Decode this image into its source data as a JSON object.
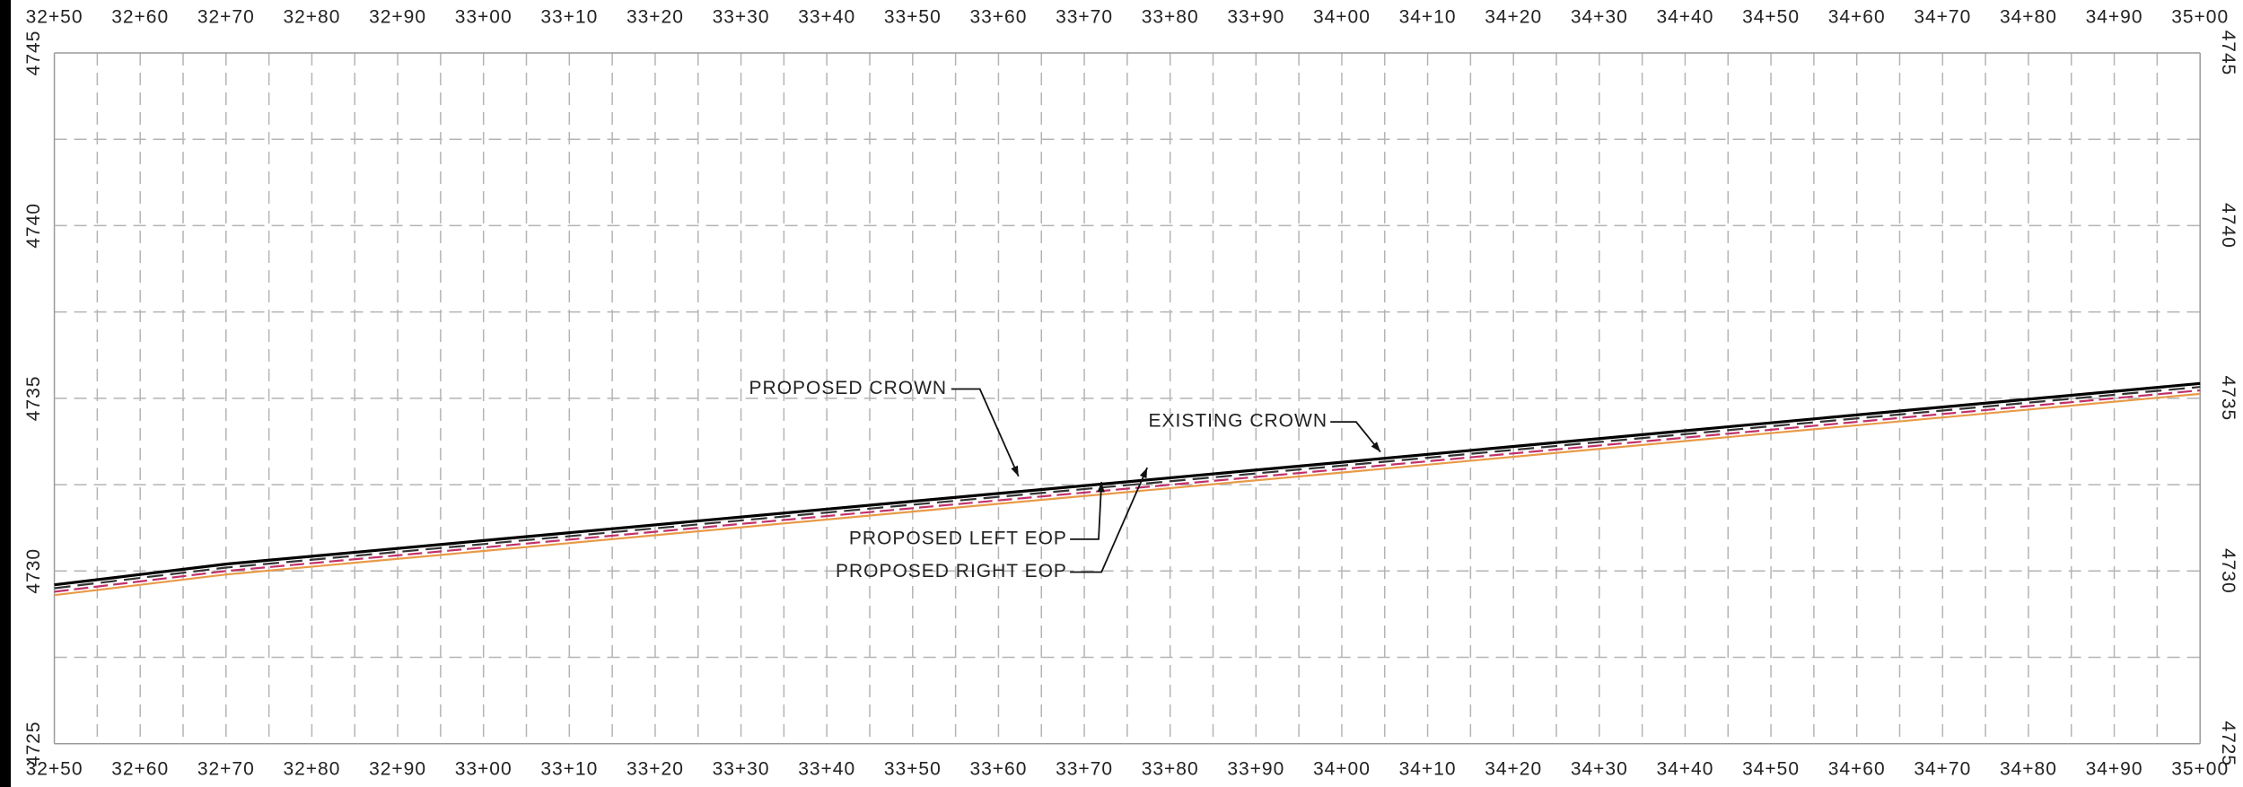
{
  "chart_data": {
    "type": "line",
    "x": [
      3250,
      3260,
      3270,
      3300,
      3350,
      3400,
      3450,
      3500
    ],
    "xlim": [
      3250,
      3500
    ],
    "xticks": [
      {
        "value": 3250,
        "label": "32+50"
      },
      {
        "value": 3260,
        "label": "32+60"
      },
      {
        "value": 3270,
        "label": "32+70"
      },
      {
        "value": 3280,
        "label": "32+80"
      },
      {
        "value": 3290,
        "label": "32+90"
      },
      {
        "value": 3300,
        "label": "33+00"
      },
      {
        "value": 3310,
        "label": "33+10"
      },
      {
        "value": 3320,
        "label": "33+20"
      },
      {
        "value": 3330,
        "label": "33+30"
      },
      {
        "value": 3340,
        "label": "33+40"
      },
      {
        "value": 3350,
        "label": "33+50"
      },
      {
        "value": 3360,
        "label": "33+60"
      },
      {
        "value": 3370,
        "label": "33+70"
      },
      {
        "value": 3380,
        "label": "33+80"
      },
      {
        "value": 3390,
        "label": "33+90"
      },
      {
        "value": 3400,
        "label": "34+00"
      },
      {
        "value": 3410,
        "label": "34+10"
      },
      {
        "value": 3420,
        "label": "34+20"
      },
      {
        "value": 3430,
        "label": "34+30"
      },
      {
        "value": 3440,
        "label": "34+40"
      },
      {
        "value": 3450,
        "label": "34+50"
      },
      {
        "value": 3460,
        "label": "34+60"
      },
      {
        "value": 3470,
        "label": "34+70"
      },
      {
        "value": 3480,
        "label": "34+80"
      },
      {
        "value": 3490,
        "label": "34+90"
      },
      {
        "value": 3500,
        "label": "35+00"
      }
    ],
    "xminor_step": 5,
    "ylim": [
      4725,
      4745
    ],
    "yticks": [
      4725,
      4730,
      4735,
      4740,
      4745
    ],
    "yminor": [
      4727.5,
      4732.5,
      4737.5,
      4742.5
    ],
    "grid": true,
    "series": [
      {
        "name": "PROPOSED CROWN",
        "color": "#000000",
        "dash": "none",
        "values": [
          4729.6,
          4729.9,
          4730.2,
          4730.88,
          4732.02,
          4733.15,
          4734.29,
          4735.43
        ]
      },
      {
        "name": "EXISTING CROWN",
        "color": "#333333",
        "dash": "18 8",
        "values": [
          4729.5,
          4729.8,
          4730.1,
          4730.78,
          4731.92,
          4733.05,
          4734.19,
          4735.33
        ]
      },
      {
        "name": "PROPOSED LEFT EOP",
        "color": "#c0306a",
        "dash": "16 6",
        "values": [
          4729.4,
          4729.7,
          4730.0,
          4730.68,
          4731.82,
          4732.95,
          4734.09,
          4735.23
        ]
      },
      {
        "name": "PROPOSED RIGHT EOP",
        "color": "#e89a48",
        "dash": "none",
        "values": [
          4729.3,
          4729.6,
          4729.9,
          4730.58,
          4731.72,
          4732.85,
          4733.99,
          4735.13
        ]
      }
    ]
  }
}
